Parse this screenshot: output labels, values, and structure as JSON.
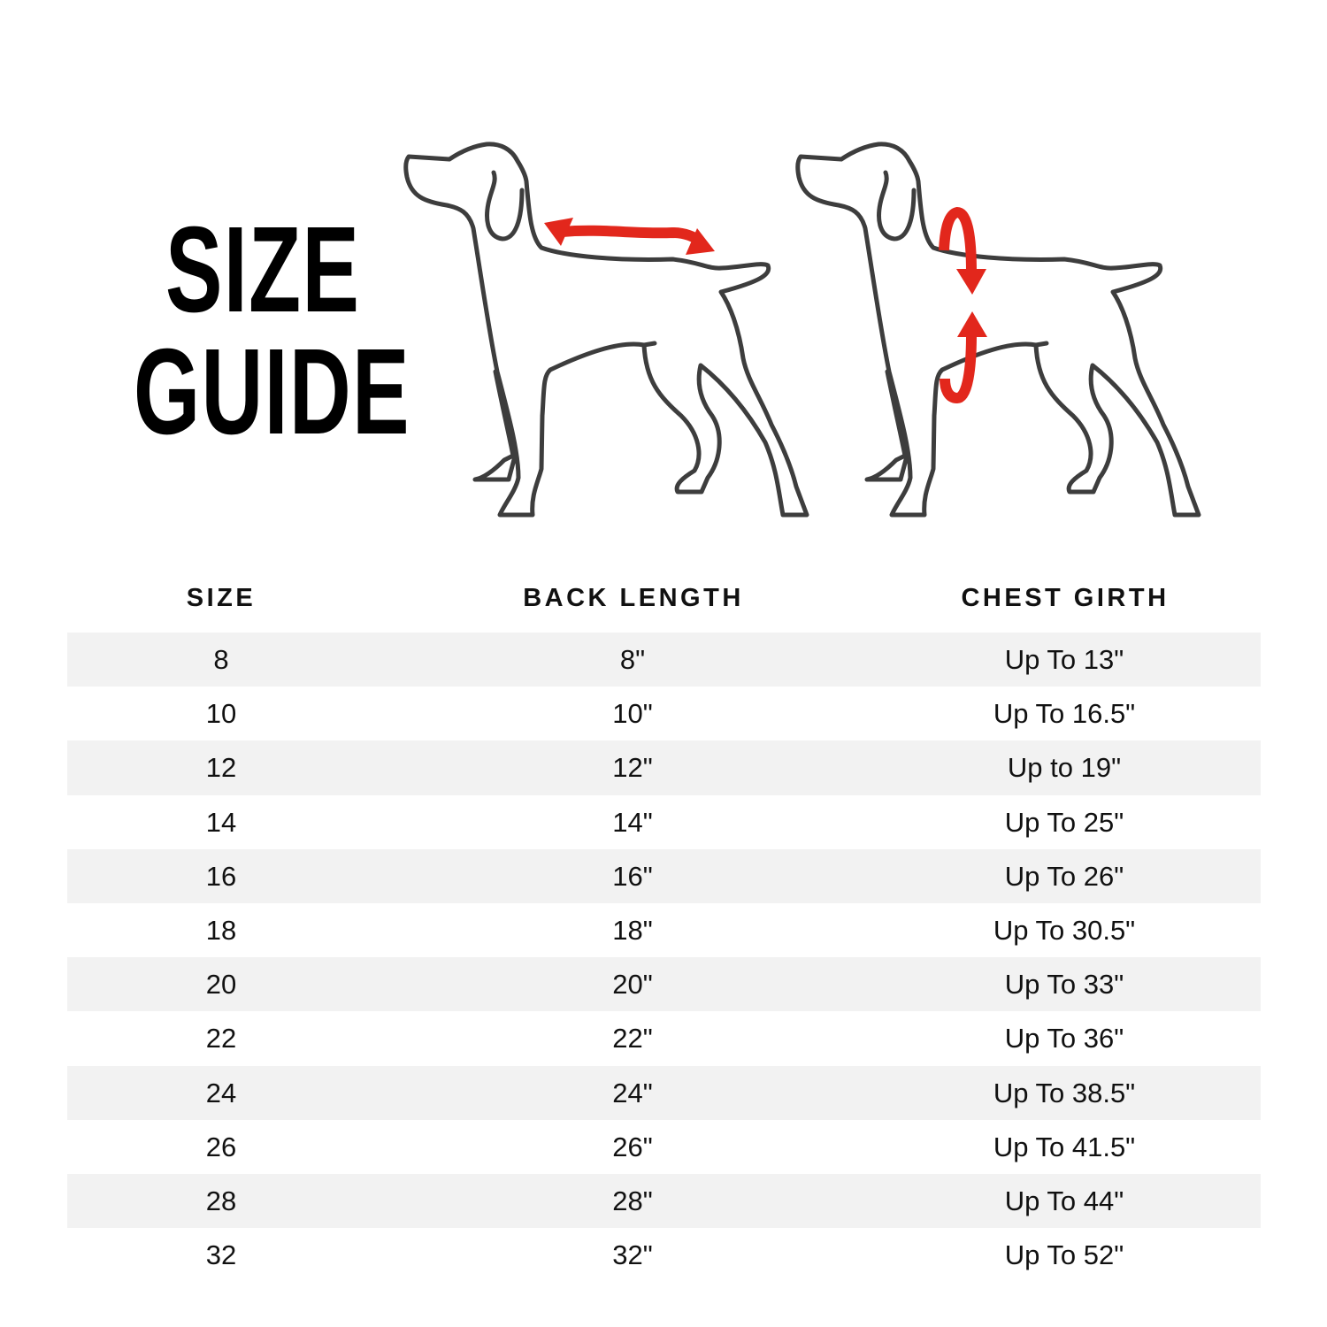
{
  "title": {
    "line1": "SIZE",
    "line2": "GUIDE"
  },
  "illustrations": [
    {
      "icon": "dog-back-length-icon",
      "arrow_color": "#e2271c"
    },
    {
      "icon": "dog-chest-girth-icon",
      "arrow_color": "#e2271c"
    }
  ],
  "colors": {
    "outline": "#3d3d3d",
    "arrow": "#e2271c",
    "row_alt": "#f2f2f2"
  },
  "table": {
    "headers": [
      "SIZE",
      "BACK LENGTH",
      "CHEST GIRTH"
    ],
    "rows": [
      [
        "8",
        "8\"",
        "Up To 13\""
      ],
      [
        "10",
        "10\"",
        "Up To 16.5\""
      ],
      [
        "12",
        "12\"",
        "Up to 19\""
      ],
      [
        "14",
        "14\"",
        "Up To 25\""
      ],
      [
        "16",
        "16\"",
        "Up To 26\""
      ],
      [
        "18",
        "18\"",
        "Up To 30.5\""
      ],
      [
        "20",
        "20\"",
        "Up To 33\""
      ],
      [
        "22",
        "22\"",
        "Up To 36\""
      ],
      [
        "24",
        "24\"",
        "Up To 38.5\""
      ],
      [
        "26",
        "26\"",
        "Up To 41.5\""
      ],
      [
        "28",
        "28\"",
        "Up To 44\""
      ],
      [
        "32",
        "32\"",
        "Up To 52\""
      ]
    ]
  }
}
